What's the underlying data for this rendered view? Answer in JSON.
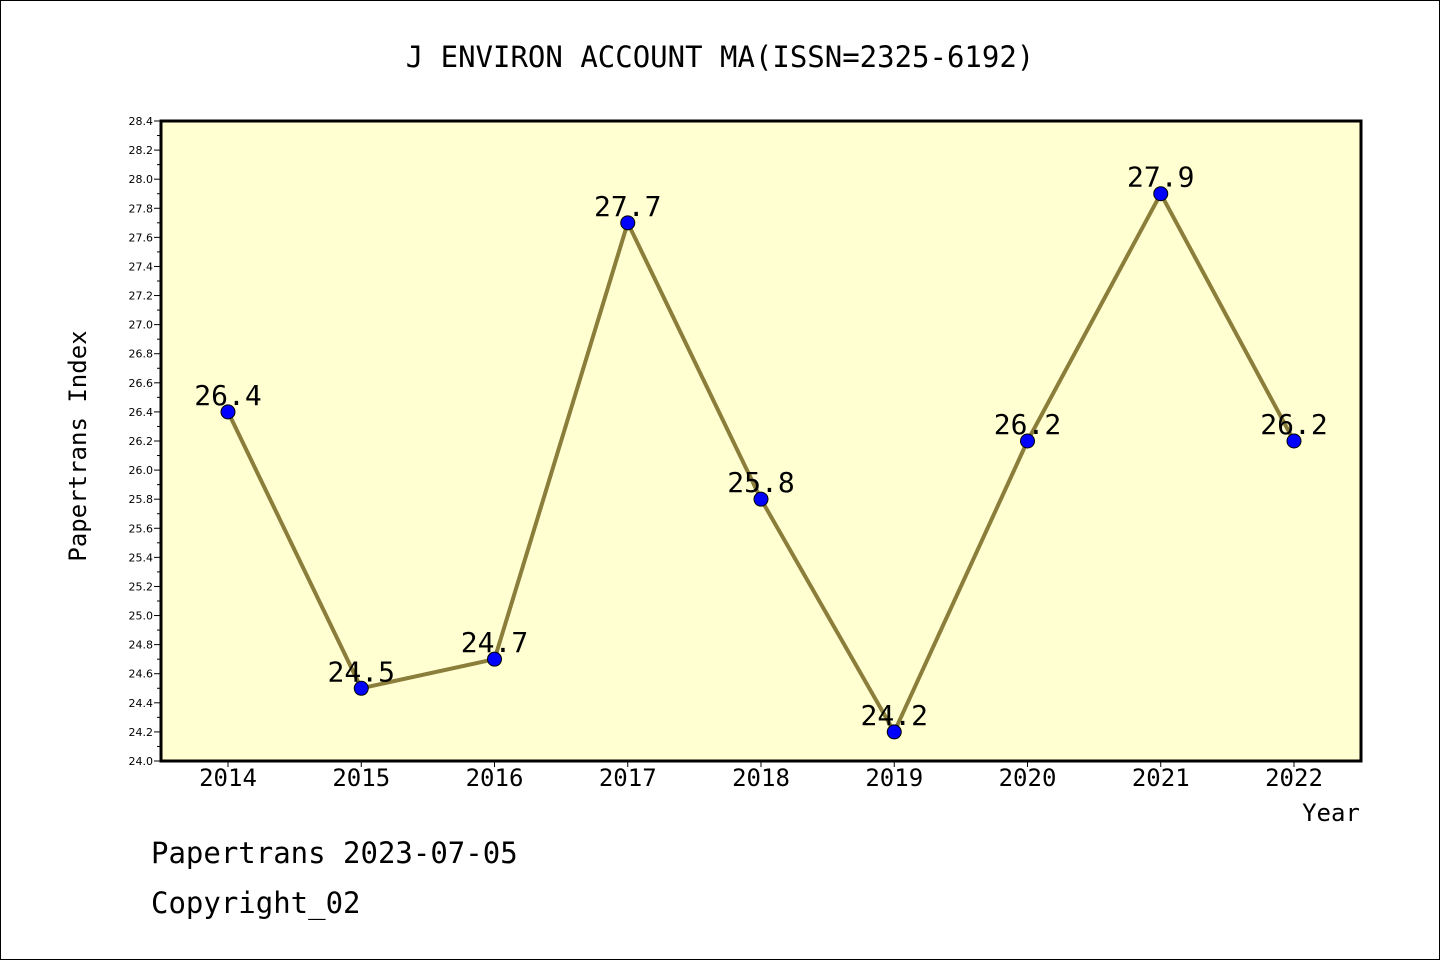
{
  "chart_data": {
    "type": "line",
    "title": "J ENVIRON ACCOUNT MA(ISSN=2325-6192)",
    "xlabel": "Year",
    "ylabel": "Papertrans Index",
    "categories": [
      "2014",
      "2015",
      "2016",
      "2017",
      "2018",
      "2019",
      "2020",
      "2021",
      "2022"
    ],
    "series": [
      {
        "values": [
          26.4,
          24.5,
          24.7,
          27.7,
          25.8,
          24.2,
          26.2,
          27.9,
          26.2
        ],
        "data_labels": [
          "26.4",
          "24.5",
          "24.7",
          "27.7",
          "25.8",
          "24.2",
          "26.2",
          "27.9",
          "26.2"
        ]
      }
    ],
    "ylim": [
      24.0,
      28.4
    ],
    "y_ticks": [
      "24.0",
      "24.2",
      "24.4",
      "24.6",
      "24.8",
      "25.0",
      "25.2",
      "25.4",
      "25.6",
      "25.8",
      "26.0",
      "26.2",
      "26.4",
      "26.6",
      "26.8",
      "27.0",
      "27.2",
      "27.4",
      "27.6",
      "27.8",
      "28.0",
      "28.2",
      "28.4"
    ],
    "y_tick_step": 0.2,
    "grid": false,
    "colors": {
      "plot_background": "#ffffd2",
      "line": "#8b7d3a",
      "marker": "#0000ff",
      "marker_edge": "#000000",
      "frame": "#000000"
    }
  },
  "footer": {
    "line1": "Papertrans 2023-07-05",
    "line2": "Copyright_02"
  }
}
